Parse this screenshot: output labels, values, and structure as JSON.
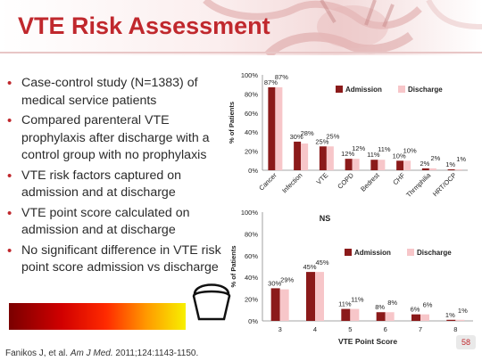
{
  "title": "VTE Risk Assessment",
  "bullets": [
    "Case-control study (N=1383) of medical service patients",
    "Compared parenteral VTE prophylaxis after discharge with a control group with no prophylaxis",
    "VTE risk factors captured on admission and at discharge",
    "VTE point score calculated on admission and at discharge",
    "No significant difference in VTE risk point score admission vs discharge"
  ],
  "citation": {
    "authors": "Fanikos J, et al.",
    "journal": "Am J Med.",
    "details": "2011;124:1143-1150."
  },
  "page_number": "58",
  "colors": {
    "title": "#c0282d",
    "admission": "#8b1a1a",
    "discharge": "#f7c6c9"
  },
  "chart_data": [
    {
      "type": "bar",
      "categories": [
        "Cancer",
        "Infection",
        "VTE",
        "COPD",
        "Bedrest",
        "CHF",
        "Thrmphilia",
        "HRT/OCP"
      ],
      "series": [
        {
          "name": "Admission",
          "values": [
            87,
            30,
            25,
            12,
            11,
            10,
            2,
            1
          ]
        },
        {
          "name": "Discharge",
          "values": [
            87,
            28,
            25,
            12,
            11,
            10,
            2,
            1
          ]
        }
      ],
      "data_labels": [
        "87%",
        "87%",
        "30%",
        "28%",
        "25%",
        "25%",
        "12%",
        "12%",
        "11%",
        "11%",
        "10%",
        "10%",
        "2%",
        "2%",
        "1%",
        "1%"
      ],
      "ylabel": "% of Patients",
      "xlabel": "",
      "yticks": [
        "0%",
        "20%",
        "40%",
        "60%",
        "80%",
        "100%"
      ],
      "ylim": [
        0,
        100
      ],
      "legend": "top-right",
      "grid": false
    },
    {
      "type": "bar",
      "title": "NS",
      "categories": [
        "3",
        "4",
        "5",
        "6",
        "7",
        "8"
      ],
      "series": [
        {
          "name": "Admission",
          "values": [
            30,
            45,
            11,
            8,
            6,
            1
          ]
        },
        {
          "name": "Discharge",
          "values": [
            29,
            45,
            11,
            8,
            6,
            1
          ]
        }
      ],
      "data_labels": [
        "30%",
        "29%",
        "45%",
        "45%",
        "11%",
        "11%",
        "8%",
        "8%",
        "6%",
        "6%",
        "1%",
        "1%"
      ],
      "ylabel": "% of Patients",
      "xlabel": "VTE Point Score",
      "yticks": [
        "0%",
        "20%",
        "40%",
        "60%",
        "80%",
        "100%"
      ],
      "ylim": [
        0,
        100
      ],
      "legend": "right",
      "grid": false
    }
  ]
}
